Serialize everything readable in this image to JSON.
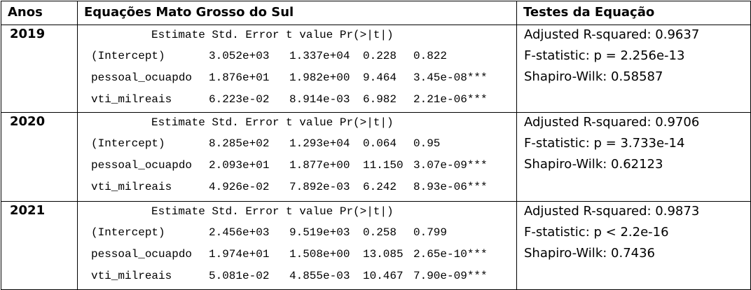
{
  "table": {
    "header": [
      "Anos",
      "Equações Mato Grosso do Sul",
      "Testes da Equação"
    ],
    "rows": [
      {
        "year": "2019",
        "coef_header": "Estimate Std. Error t value Pr(>|t|)",
        "coefficients": [
          [
            "(Intercept)",
            "3.052e+03",
            "1.337e+04",
            "0.228",
            "0.822"
          ],
          [
            "pessoal_ocuapdo",
            "1.876e+01",
            "1.982e+00",
            "9.464",
            "3.45e-08***"
          ],
          [
            "vti_milreais",
            "6.223e-02",
            "8.914e-03",
            "6.982",
            "2.21e-06***"
          ]
        ],
        "tests": [
          "Adjusted R-squared: 0.9637",
          "F-statistic: p = 2.256e-13",
          "Shapiro-Wilk: 0.58587"
        ]
      },
      {
        "year": "2020",
        "coef_header": "Estimate Std. Error t value Pr(>|t|)",
        "coefficients": [
          [
            "(Intercept)",
            "8.285e+02",
            "1.293e+04",
            "0.064",
            "0.95"
          ],
          [
            "pessoal_ocuapdo",
            "2.093e+01",
            "1.877e+00",
            "11.150",
            "3.07e-09***"
          ],
          [
            "vti_milreais",
            "4.926e-02",
            "7.892e-03",
            "6.242",
            "8.93e-06***"
          ]
        ],
        "tests": [
          "Adjusted R-squared: 0.9706",
          "F-statistic: p = 3.733e-14",
          "Shapiro-Wilk: 0.62123"
        ]
      },
      {
        "year": "2021",
        "coef_header": "Estimate Std. Error t value Pr(>|t|)",
        "coefficients": [
          [
            "(Intercept)",
            "2.456e+03",
            "9.519e+03",
            "0.258",
            "0.799"
          ],
          [
            "pessoal_ocuapdo",
            "1.974e+01",
            "1.508e+00",
            "13.085",
            "2.65e-10***"
          ],
          [
            "vti_milreais",
            "5.081e-02",
            "4.855e-03",
            "10.467",
            "7.90e-09***"
          ]
        ],
        "tests": [
          "Adjusted R-squared: 0.9873",
          "F-statistic: p < 2.2e-16",
          "Shapiro-Wilk: 0.7436"
        ]
      }
    ]
  }
}
